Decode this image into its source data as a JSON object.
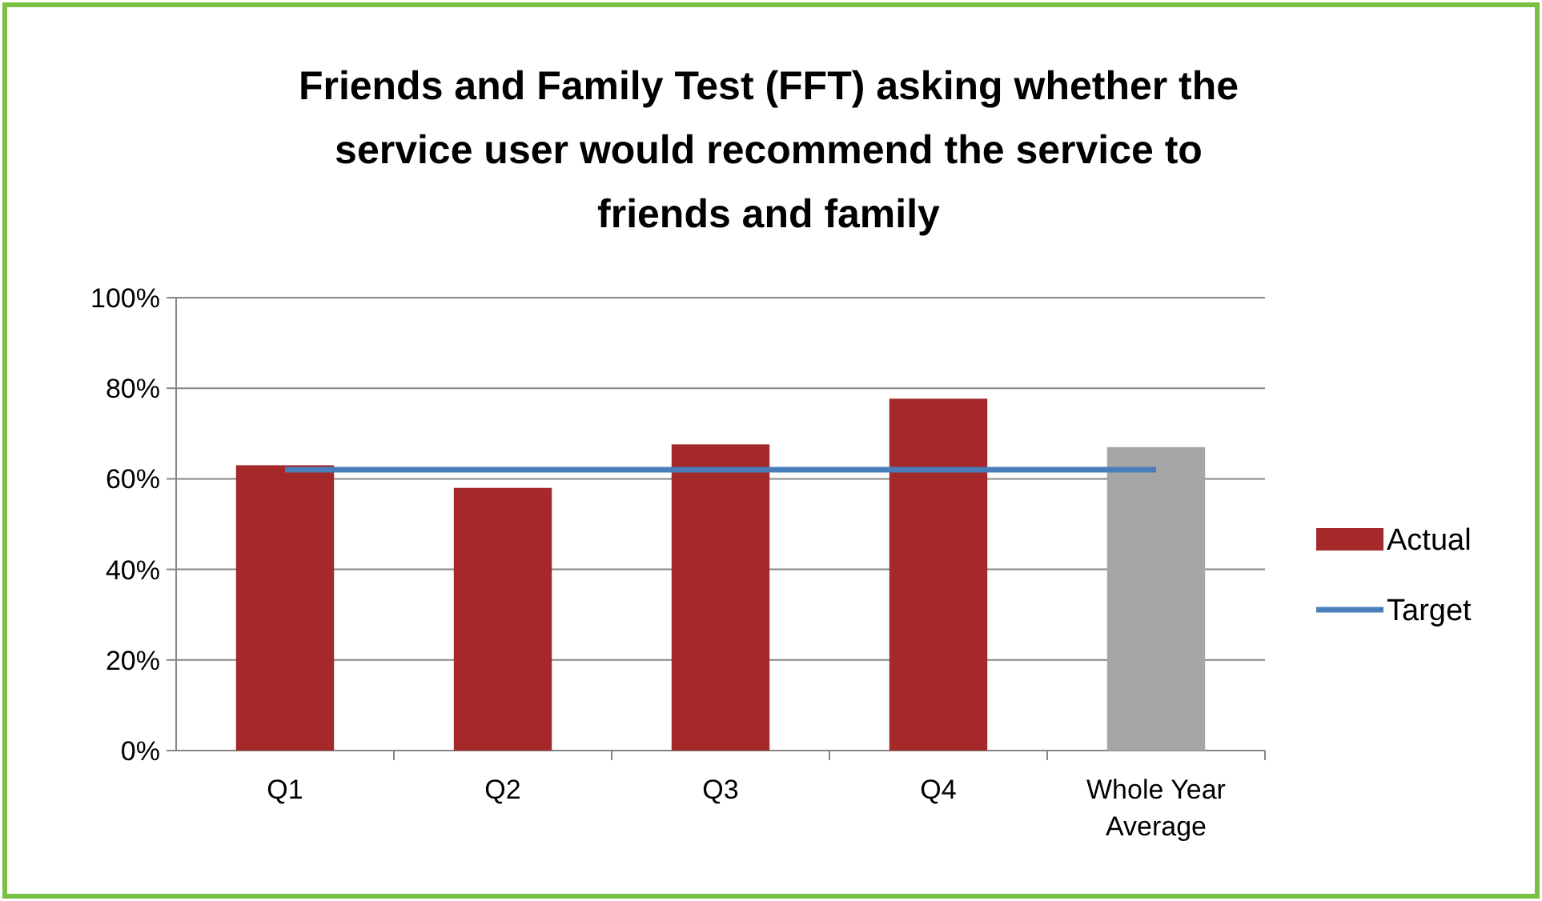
{
  "chart_data": {
    "type": "bar",
    "title": "Friends and Family Test (FFT) asking whether the service user would recommend the service to friends and family",
    "categories": [
      "Q1",
      "Q2",
      "Q3",
      "Q4",
      "Whole Year Average"
    ],
    "series": [
      {
        "name": "Actual",
        "color": "#a5292a",
        "colors": [
          "#a5292a",
          "#a5292a",
          "#a5292a",
          "#a5292a",
          "#a6a6a6"
        ],
        "values": [
          63,
          58,
          67.6,
          77.7,
          67
        ]
      },
      {
        "name": "Target",
        "type": "line",
        "color": "#4a7ebb",
        "values": [
          62,
          62,
          62,
          62,
          62
        ]
      }
    ],
    "ylim": [
      0,
      100
    ],
    "yticks": [
      {
        "value": 0,
        "label": "0%"
      },
      {
        "value": 20,
        "label": "20%"
      },
      {
        "value": 40,
        "label": "40%"
      },
      {
        "value": 60,
        "label": "60%"
      },
      {
        "value": 80,
        "label": "80%"
      },
      {
        "value": 100,
        "label": "100%"
      }
    ],
    "grid": "y",
    "legend": "right",
    "marker": "none",
    "line_style": "solid"
  }
}
